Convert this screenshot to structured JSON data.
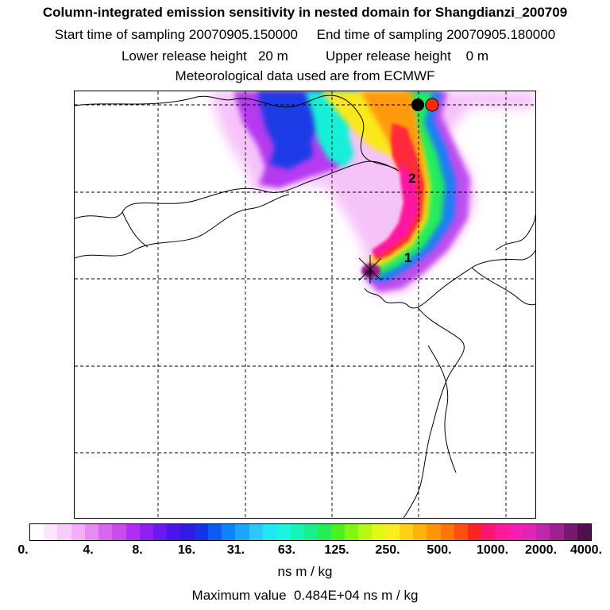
{
  "header": {
    "title": "Column-integrated emission sensitivity in nested domain for Shangdianzi_200709",
    "sampling": "Start time of sampling 20070905.150000     End time of sampling 20070905.180000",
    "release": "Lower release height   20 m          Upper release height    0 m",
    "meteo": "Meteorological data used are from ECMWF"
  },
  "map": {
    "day_labels": [
      "1",
      "2"
    ],
    "coastline_color": "#000000",
    "grid_style": "dashed",
    "receptor_markers": [
      {
        "name": "black-dot-marker",
        "color": "#000000"
      },
      {
        "name": "red-dot-marker",
        "color": "#ff2a00"
      }
    ],
    "release_marker": "x-cross"
  },
  "colorbar": {
    "segment_colors": [
      "#ffffff",
      "#fde6fd",
      "#f8cbf8",
      "#f2aef6",
      "#e88af2",
      "#d966ef",
      "#c84bef",
      "#b02ef2",
      "#8f1ff2",
      "#6a18ef",
      "#4b14ea",
      "#2f1be3",
      "#1434e6",
      "#0a5cf2",
      "#0f84fa",
      "#1ba6fb",
      "#2ac8fb",
      "#20e6f5",
      "#18f6e0",
      "#16f4b8",
      "#19ef8c",
      "#22ee55",
      "#4cf21e",
      "#82f515",
      "#b6f814",
      "#e2f918",
      "#fbee1f",
      "#ffd115",
      "#ffb30a",
      "#ff9406",
      "#ff7407",
      "#ff4f0e",
      "#ff2324",
      "#ff1474",
      "#ff1a9b",
      "#f41fb2",
      "#df24b6",
      "#c026ac",
      "#a0208f",
      "#781870",
      "#50104e"
    ],
    "tick_labels": [
      "0.",
      "4.",
      "8.",
      "16.",
      "31.",
      "63.",
      "125.",
      "250.",
      "500.",
      "1000.",
      "2000.",
      "4000."
    ],
    "unit": "ns m / kg"
  },
  "footer": {
    "max_value": "Maximum value  0.484E+04 ns m / kg"
  }
}
